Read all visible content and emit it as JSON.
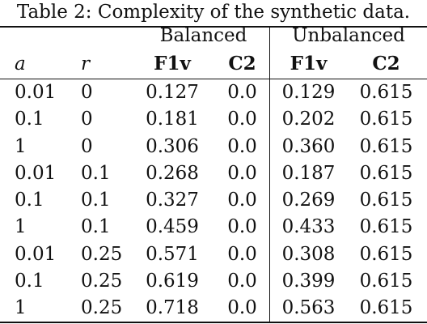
{
  "caption": "Table 2: Complexity of the synthetic data.",
  "groups": {
    "balanced": "Balanced",
    "unbalanced": "Unbalanced"
  },
  "columns": {
    "a": "a",
    "r": "r",
    "bal_f1v": "F1v",
    "bal_c2": "C2",
    "unbal_f1v": "F1v",
    "unbal_c2": "C2"
  },
  "rows": [
    [
      "0.01",
      "0",
      "0.127",
      "0.0",
      "0.129",
      "0.615"
    ],
    [
      "0.1",
      "0",
      "0.181",
      "0.0",
      "0.202",
      "0.615"
    ],
    [
      "1",
      "0",
      "0.306",
      "0.0",
      "0.360",
      "0.615"
    ],
    [
      "0.01",
      "0.1",
      "0.268",
      "0.0",
      "0.187",
      "0.615"
    ],
    [
      "0.1",
      "0.1",
      "0.327",
      "0.0",
      "0.269",
      "0.615"
    ],
    [
      "1",
      "0.1",
      "0.459",
      "0.0",
      "0.433",
      "0.615"
    ],
    [
      "0.01",
      "0.25",
      "0.571",
      "0.0",
      "0.308",
      "0.615"
    ],
    [
      "0.1",
      "0.25",
      "0.619",
      "0.0",
      "0.399",
      "0.615"
    ],
    [
      "1",
      "0.25",
      "0.718",
      "0.0",
      "0.563",
      "0.615"
    ]
  ]
}
